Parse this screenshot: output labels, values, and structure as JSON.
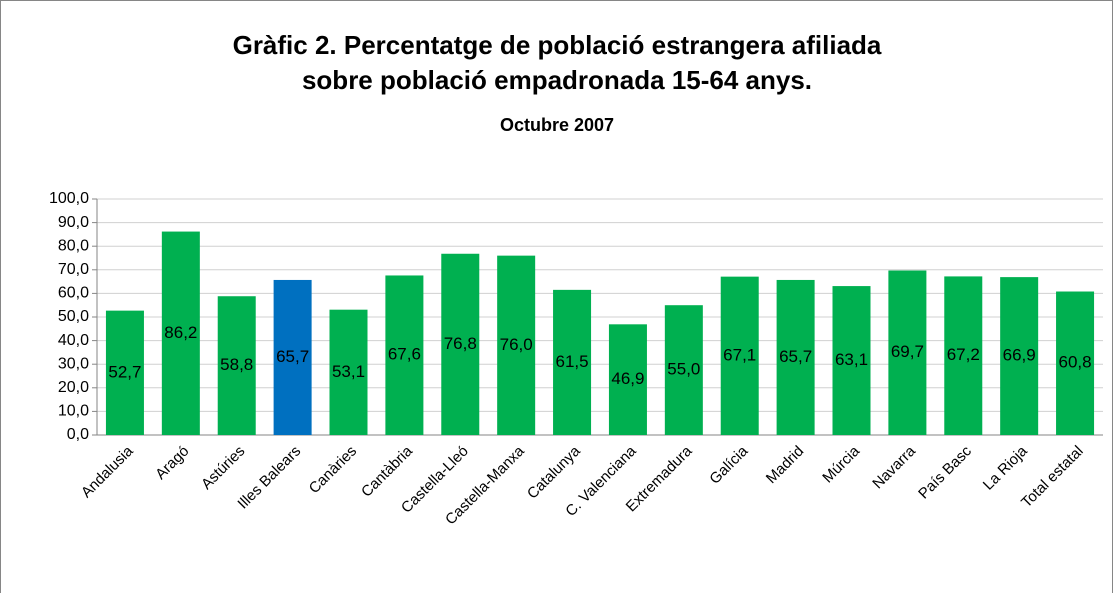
{
  "chart_data": {
    "type": "bar",
    "title": "Gràfic 2. Percentatge de població estrangera afiliada",
    "title_line2": "sobre població empadronada 15-64 anys.",
    "subtitle": "Octubre 2007",
    "categories": [
      "Andalusia",
      "Aragó",
      "Astúries",
      "Illes Balears",
      "Canàries",
      "Cantàbria",
      "Castella-Lleó",
      "Castella-Manxa",
      "Catalunya",
      "C. Valenciana",
      "Extremadura",
      "Galícia",
      "Madrid",
      "Múrcia",
      "Navarra",
      "País Basc",
      "La Rioja",
      "Total estatal"
    ],
    "values": [
      52.7,
      86.2,
      58.8,
      65.7,
      53.1,
      67.6,
      76.8,
      76.0,
      61.5,
      46.9,
      55.0,
      67.1,
      65.7,
      63.1,
      69.7,
      67.2,
      66.9,
      60.8
    ],
    "value_labels": [
      "52,7",
      "86,2",
      "58,8",
      "65,7",
      "53,1",
      "67,6",
      "76,8",
      "76,0",
      "61,5",
      "46,9",
      "55,0",
      "67,1",
      "65,7",
      "63,1",
      "69,7",
      "67,2",
      "66,9",
      "60,8"
    ],
    "colors": [
      "#00b050",
      "#00b050",
      "#00b050",
      "#0070c0",
      "#00b050",
      "#00b050",
      "#00b050",
      "#00b050",
      "#00b050",
      "#00b050",
      "#00b050",
      "#00b050",
      "#00b050",
      "#00b050",
      "#00b050",
      "#00b050",
      "#00b050",
      "#00b050"
    ],
    "ylim": [
      0,
      100
    ],
    "yticks": [
      {
        "value": 0,
        "label": "0,0"
      },
      {
        "value": 10,
        "label": "10,0"
      },
      {
        "value": 20,
        "label": "20,0"
      },
      {
        "value": 30,
        "label": "30,0"
      },
      {
        "value": 40,
        "label": "40,0"
      },
      {
        "value": 50,
        "label": "50,0"
      },
      {
        "value": 60,
        "label": "60,0"
      },
      {
        "value": 70,
        "label": "70,0"
      },
      {
        "value": 80,
        "label": "80,0"
      },
      {
        "value": 90,
        "label": "90,0"
      },
      {
        "value": 100,
        "label": "100,0"
      }
    ],
    "grid": true
  }
}
